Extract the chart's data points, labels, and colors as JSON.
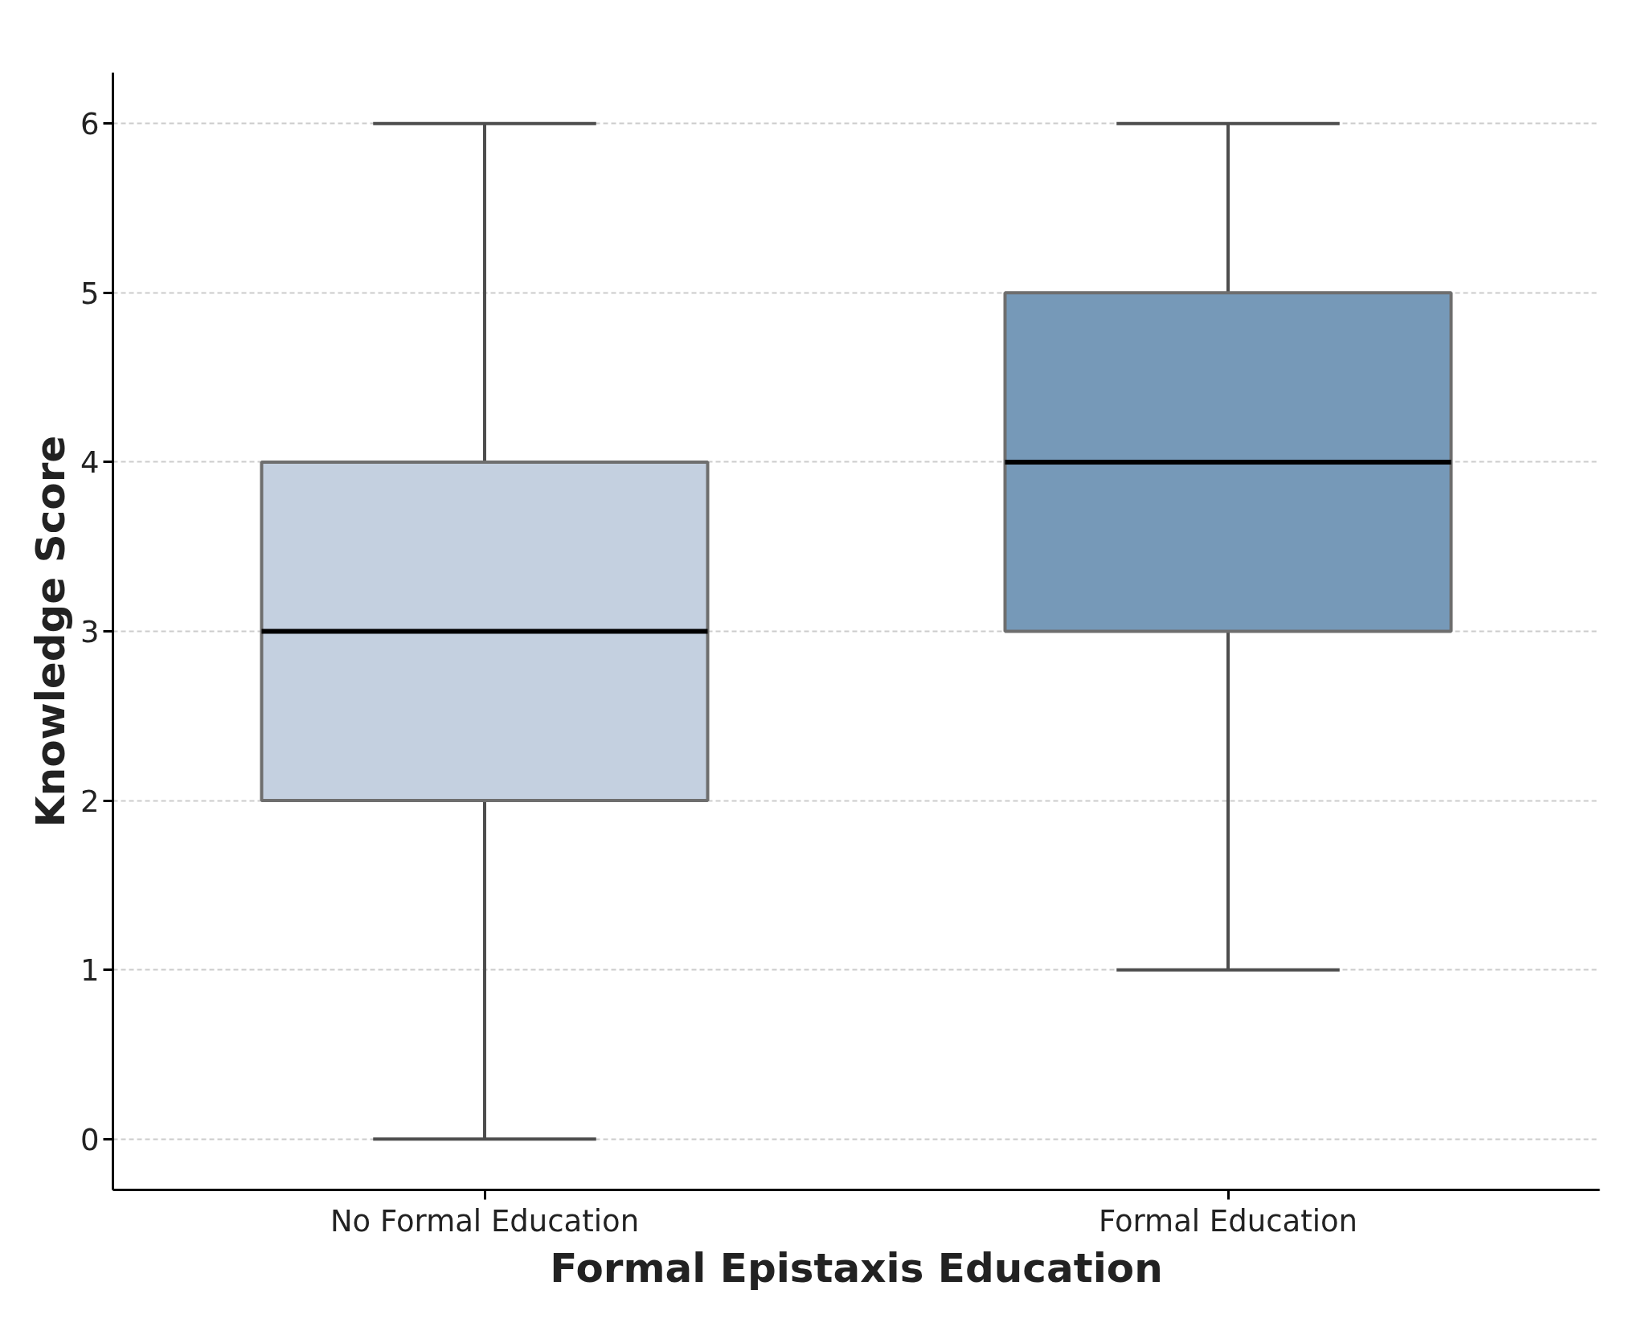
{
  "chart_data": {
    "type": "box",
    "xlabel": "Formal Epistaxis Education",
    "ylabel": "Knowledge Score",
    "categories": [
      "No Formal Education",
      "Formal Education"
    ],
    "boxes": [
      {
        "low": 0,
        "q1": 2,
        "median": 3,
        "q3": 4,
        "high": 6
      },
      {
        "low": 1,
        "q1": 3,
        "median": 4,
        "q3": 5,
        "high": 6
      }
    ],
    "colors": [
      "#c4d0e0",
      "#7699b8"
    ],
    "ylim": [
      -0.3,
      6.3
    ],
    "yticks": [
      0,
      1,
      2,
      3,
      4,
      5,
      6
    ],
    "grid": "y"
  }
}
